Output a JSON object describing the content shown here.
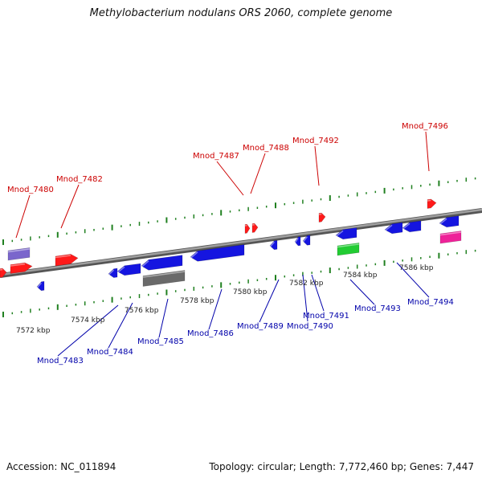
{
  "title": "Methylobacterium nodulans ORS 2060, complete genome",
  "footer": {
    "accession": "Accession: NC_011894",
    "summary": "Topology: circular; Length: 7,772,460 bp; Genes: 7,447"
  },
  "colors": {
    "backbone": "#808080",
    "tick": "#208020",
    "plus_label": "#cc0000",
    "minus_label": "#0000aa",
    "red": "#ff1a1a",
    "blue": "#1515e0",
    "gray": "#6a6a6a",
    "green": "#22cc33",
    "magenta": "#ee2299",
    "lavender": "#7a66cc"
  },
  "scale_labels": [
    "7572 kbp",
    "7574 kbp",
    "7576 kbp",
    "7578 kbp",
    "7580 kbp",
    "7582 kbp",
    "7584 kbp",
    "7586 kbp"
  ],
  "genes_plus": [
    {
      "name": "Mnod_7480"
    },
    {
      "name": "Mnod_7482"
    },
    {
      "name": "Mnod_7487"
    },
    {
      "name": "Mnod_7488"
    },
    {
      "name": "Mnod_7492"
    },
    {
      "name": "Mnod_7496"
    }
  ],
  "genes_minus": [
    {
      "name": "Mnod_7483"
    },
    {
      "name": "Mnod_7484"
    },
    {
      "name": "Mnod_7485"
    },
    {
      "name": "Mnod_7486"
    },
    {
      "name": "Mnod_7489"
    },
    {
      "name": "Mnod_7490"
    },
    {
      "name": "Mnod_7491"
    },
    {
      "name": "Mnod_7493"
    },
    {
      "name": "Mnod_7494"
    }
  ]
}
